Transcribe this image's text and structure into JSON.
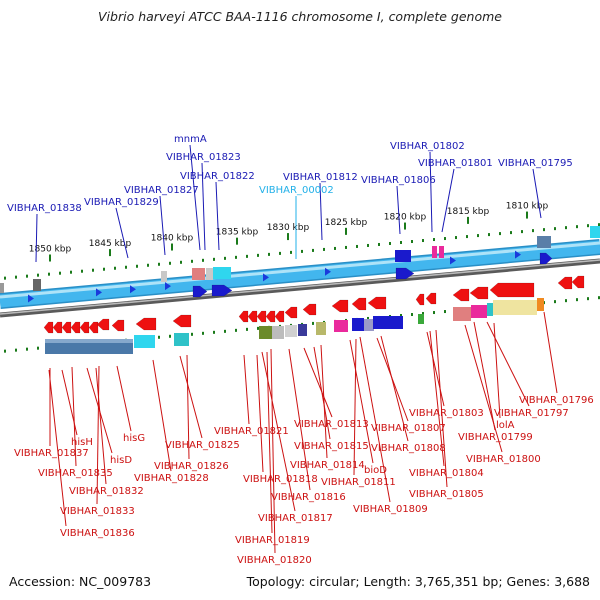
{
  "title": "Vibrio harveyi ATCC BAA-1116 chromosome I, complete genome",
  "footer": {
    "accession": "Accession: NC_009783",
    "summary": "Topology: circular; Length: 3,765,351 bp; Genes: 3,688"
  },
  "colors": {
    "backbone": "#42b6ee",
    "backbone_light": "#aee3f8",
    "inner_track": "#777777",
    "top_label": "#1a1ab4",
    "top_label_highlight": "#22b0e8",
    "bottom_label": "#cc1111",
    "tick": "#1a7a1a"
  },
  "scale_labels": [
    "1850 kbp",
    "1845 kbp",
    "1840 kbp",
    "1835 kbp",
    "1830 kbp",
    "1825 kbp",
    "1820 kbp",
    "1815 kbp",
    "1810 kbp"
  ],
  "top_labels": [
    "VIBHAR_01838",
    "VIBHAR_01829",
    "VIBHAR_01827",
    "mnmA",
    "VIBHAR_01823",
    "VIBHAR_01822",
    "VIBHAR_00002",
    "VIBHAR_01812",
    "VIBHAR_01806",
    "VIBHAR_01802",
    "VIBHAR_01801",
    "VIBHAR_01795"
  ],
  "bottom_labels": [
    "VIBHAR_01837",
    "hisH",
    "VIBHAR_01835",
    "hisD",
    "VIBHAR_01832",
    "hisG",
    "VIBHAR_01833",
    "VIBHAR_01828",
    "VIBHAR_01836",
    "VIBHAR_01825",
    "VIBHAR_01826",
    "VIBHAR_01821",
    "VIBHAR_01818",
    "VIBHAR_01817",
    "VIBHAR_01819",
    "VIBHAR_01820",
    "VIBHAR_01813",
    "VIBHAR_01815",
    "VIBHAR_01814",
    "VIBHAR_01816",
    "bioD",
    "VIBHAR_01811",
    "VIBHAR_01809",
    "VIBHAR_01807",
    "VIBHAR_01808",
    "VIBHAR_01803",
    "VIBHAR_01804",
    "VIBHAR_01805",
    "VIBHAR_01797",
    "lolA",
    "VIBHAR_01799",
    "VIBHAR_01800",
    "VIBHAR_01796"
  ]
}
